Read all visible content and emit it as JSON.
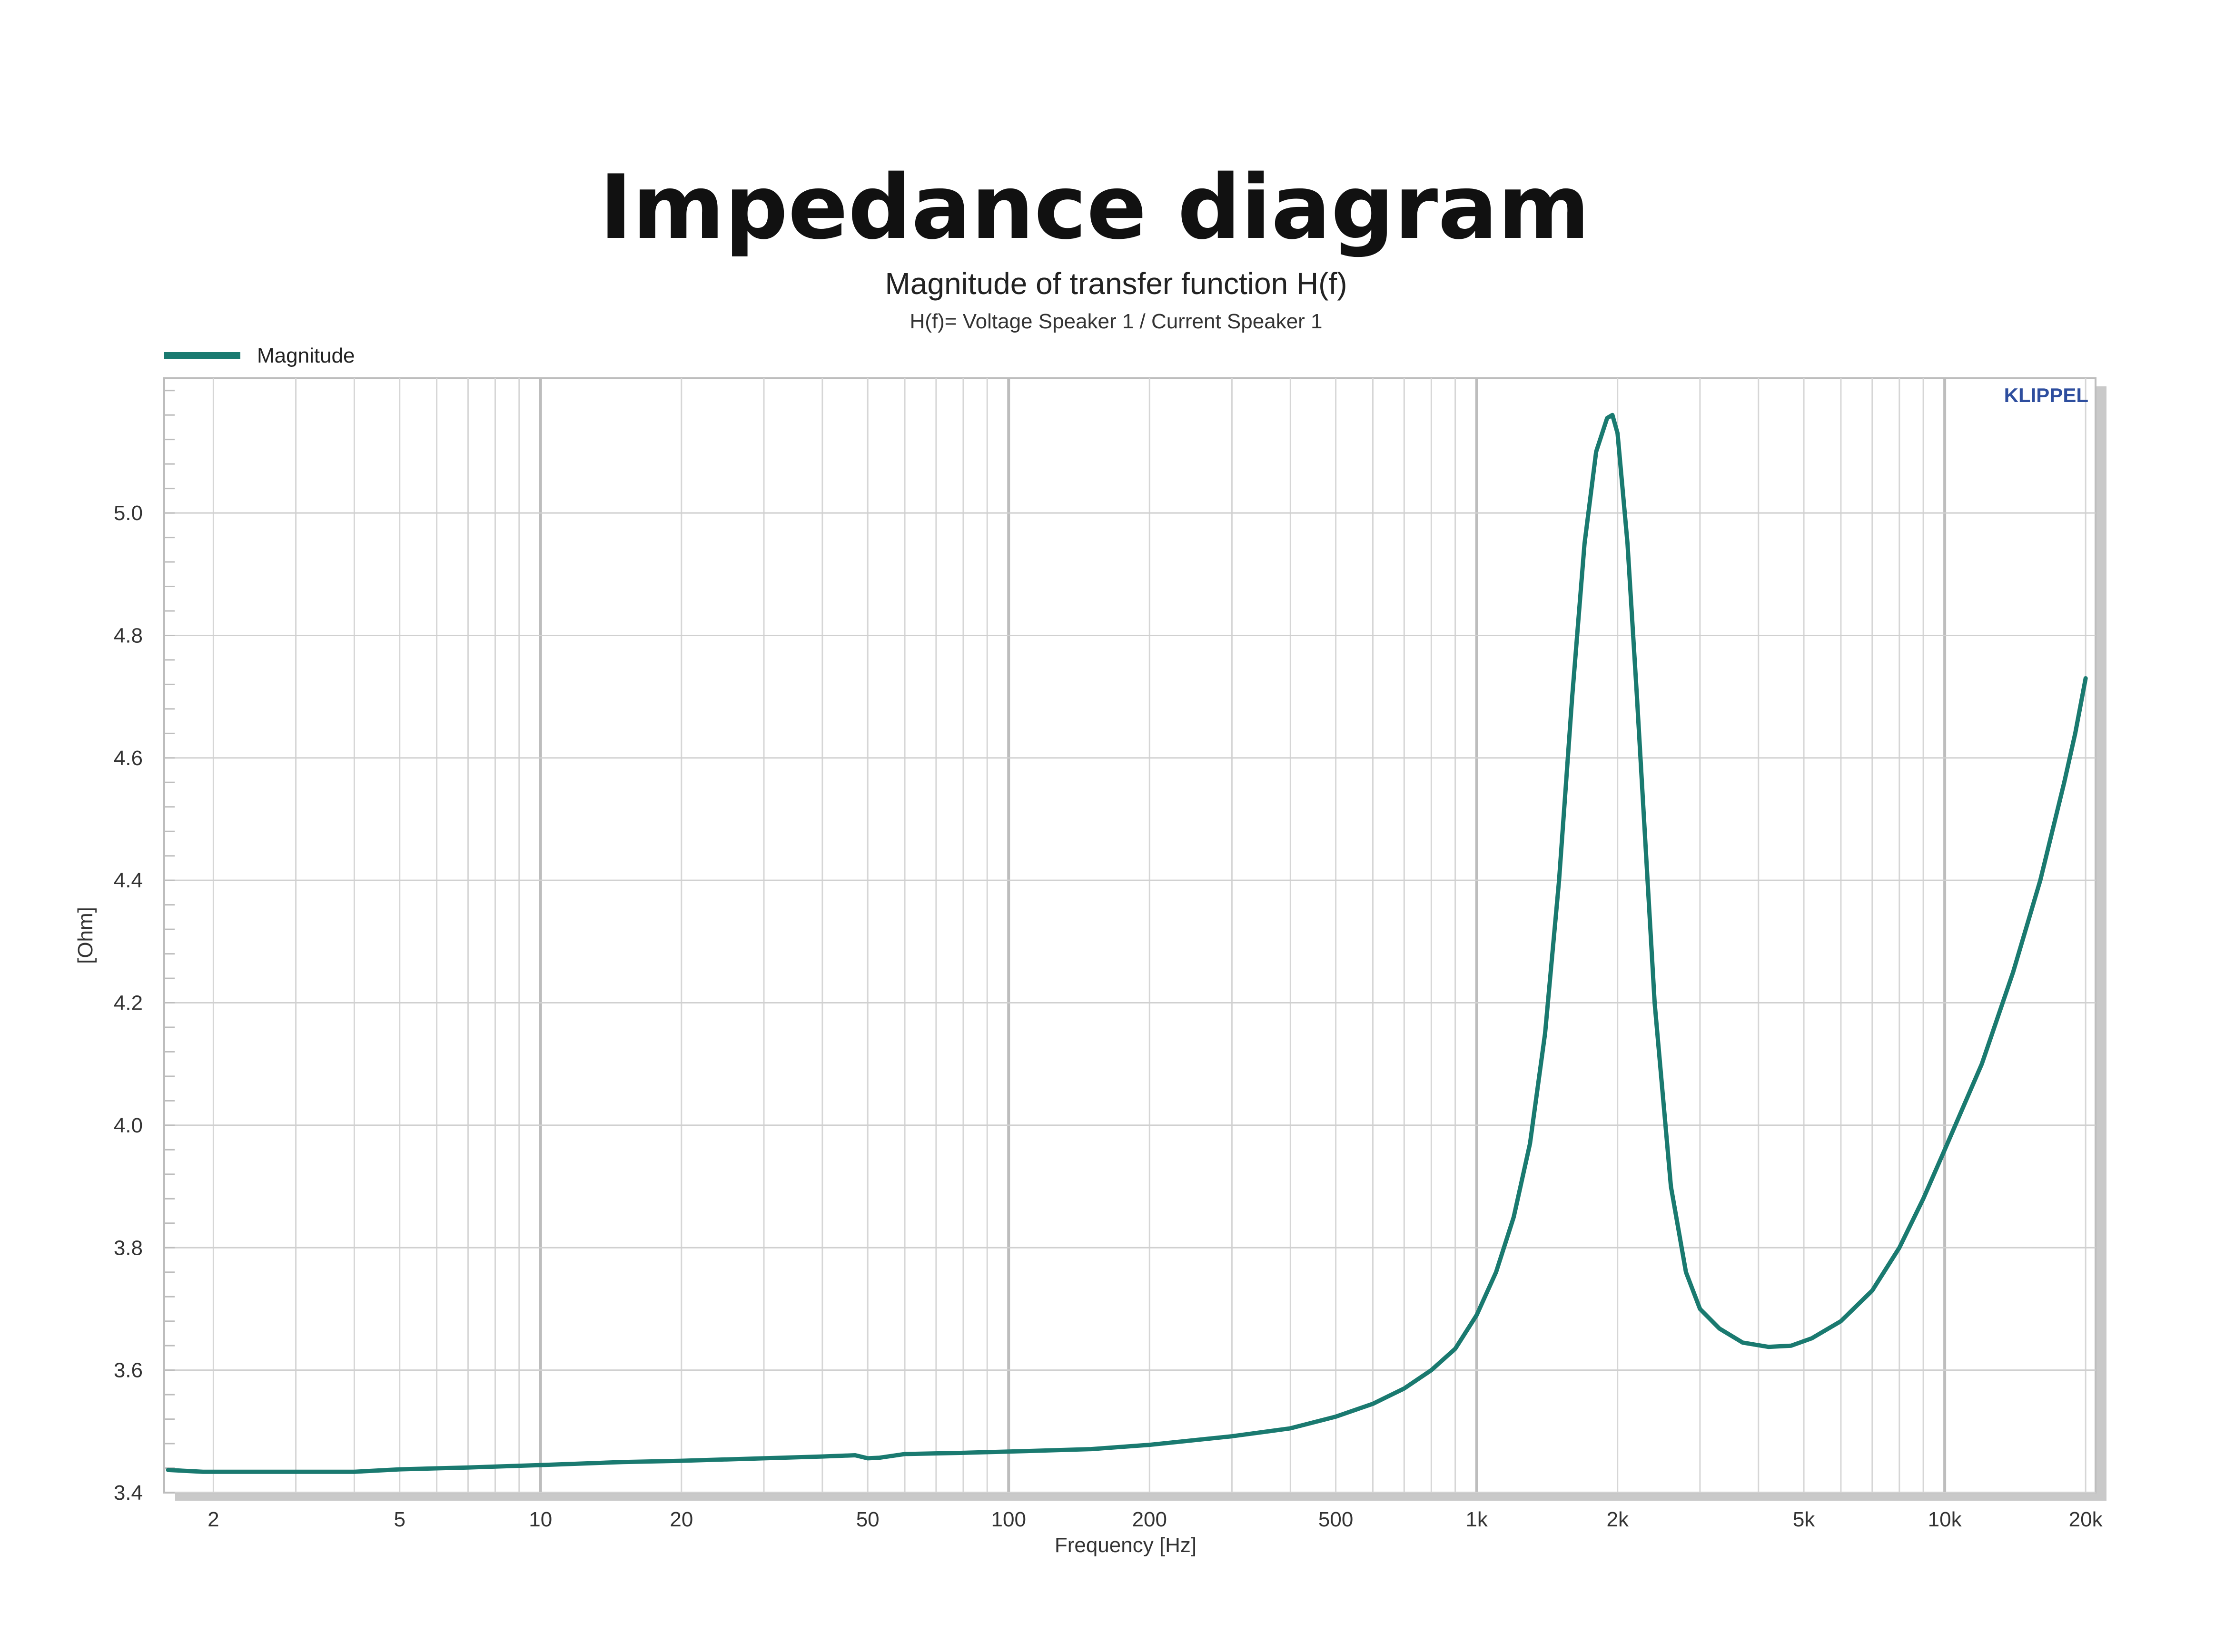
{
  "page": {
    "heading": "Impedance diagram"
  },
  "chart_data": {
    "type": "line",
    "title": "Magnitude of transfer function H(f)",
    "subtitle": "H(f)= Voltage Speaker 1 / Current Speaker 1",
    "xlabel": "Frequency [Hz]",
    "ylabel": "[Ohm]",
    "watermark": "KLIPPEL",
    "x_scale": "log",
    "xlim": [
      1.57,
      21000
    ],
    "ylim": [
      3.4,
      5.22
    ],
    "grid": true,
    "legend_position": "top-left",
    "x_ticks": [
      {
        "value": 2,
        "label": "2"
      },
      {
        "value": 5,
        "label": "5"
      },
      {
        "value": 10,
        "label": "10"
      },
      {
        "value": 20,
        "label": "20"
      },
      {
        "value": 50,
        "label": "50"
      },
      {
        "value": 100,
        "label": "100"
      },
      {
        "value": 200,
        "label": "200"
      },
      {
        "value": 500,
        "label": "500"
      },
      {
        "value": 1000,
        "label": "1k"
      },
      {
        "value": 2000,
        "label": "2k"
      },
      {
        "value": 5000,
        "label": "5k"
      },
      {
        "value": 10000,
        "label": "10k"
      },
      {
        "value": 20000,
        "label": "20k"
      }
    ],
    "y_ticks": [
      {
        "value": 3.4,
        "label": "3.4"
      },
      {
        "value": 3.6,
        "label": "3.6"
      },
      {
        "value": 3.8,
        "label": "3.8"
      },
      {
        "value": 4.0,
        "label": "4.0"
      },
      {
        "value": 4.2,
        "label": "4.2"
      },
      {
        "value": 4.4,
        "label": "4.4"
      },
      {
        "value": 4.6,
        "label": "4.6"
      },
      {
        "value": 4.8,
        "label": "4.8"
      },
      {
        "value": 5.0,
        "label": "5.0"
      }
    ],
    "series": [
      {
        "name": "Magnitude",
        "color": "#1a7a70",
        "points": [
          [
            1.6,
            3.437
          ],
          [
            1.9,
            3.434
          ],
          [
            2.5,
            3.434
          ],
          [
            3,
            3.434
          ],
          [
            4,
            3.434
          ],
          [
            5,
            3.438
          ],
          [
            7,
            3.441
          ],
          [
            10,
            3.445
          ],
          [
            15,
            3.45
          ],
          [
            20,
            3.452
          ],
          [
            30,
            3.456
          ],
          [
            40,
            3.459
          ],
          [
            47,
            3.461
          ],
          [
            50,
            3.456
          ],
          [
            53,
            3.457
          ],
          [
            60,
            3.463
          ],
          [
            80,
            3.465
          ],
          [
            100,
            3.467
          ],
          [
            150,
            3.471
          ],
          [
            200,
            3.478
          ],
          [
            300,
            3.492
          ],
          [
            400,
            3.505
          ],
          [
            500,
            3.524
          ],
          [
            600,
            3.545
          ],
          [
            700,
            3.57
          ],
          [
            800,
            3.6
          ],
          [
            900,
            3.635
          ],
          [
            1000,
            3.69
          ],
          [
            1100,
            3.76
          ],
          [
            1200,
            3.85
          ],
          [
            1300,
            3.97
          ],
          [
            1400,
            4.15
          ],
          [
            1500,
            4.4
          ],
          [
            1600,
            4.7
          ],
          [
            1700,
            4.95
          ],
          [
            1800,
            5.1
          ],
          [
            1900,
            5.155
          ],
          [
            1950,
            5.16
          ],
          [
            2000,
            5.13
          ],
          [
            2100,
            4.95
          ],
          [
            2200,
            4.7
          ],
          [
            2400,
            4.2
          ],
          [
            2600,
            3.9
          ],
          [
            2800,
            3.76
          ],
          [
            3000,
            3.7
          ],
          [
            3300,
            3.668
          ],
          [
            3700,
            3.645
          ],
          [
            4200,
            3.638
          ],
          [
            4700,
            3.64
          ],
          [
            5200,
            3.652
          ],
          [
            6000,
            3.68
          ],
          [
            7000,
            3.73
          ],
          [
            8000,
            3.8
          ],
          [
            9000,
            3.88
          ],
          [
            10000,
            3.96
          ],
          [
            12000,
            4.1
          ],
          [
            14000,
            4.25
          ],
          [
            16000,
            4.4
          ],
          [
            18000,
            4.56
          ],
          [
            19000,
            4.64
          ],
          [
            20000,
            4.73
          ]
        ]
      }
    ]
  },
  "colors": {
    "series": "#1a7a70",
    "grid": "#cfcfcf",
    "axis_text": "#333333",
    "watermark": "#2e4e9e",
    "title": "#111111"
  }
}
